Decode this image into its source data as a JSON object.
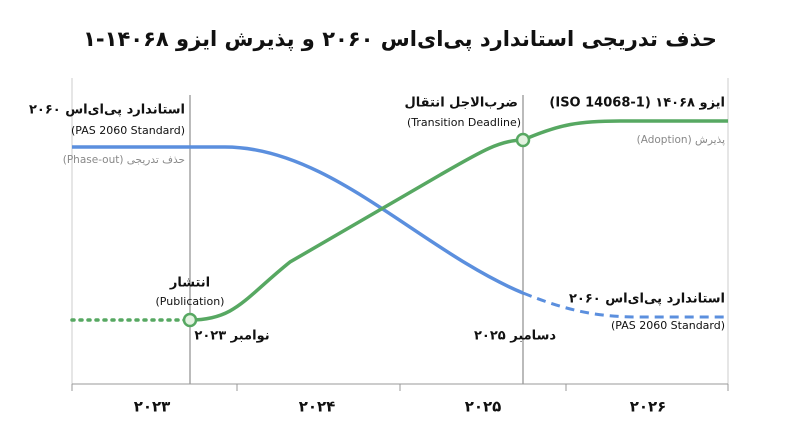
{
  "title": "حذف تدریجی استاندارد پی‌ای‌اس ۲۰۶۰ و پذیرش ایزو ۱۴۰۶۸-۱",
  "phase_out": {
    "name": "استاندارد پی‌ای‌اس ۲۰۶۰",
    "name_en": "(PAS 2060 Standard)",
    "label": "حذف تدریجی (Phase-out)"
  },
  "adoption": {
    "name": "ایزو ۱۴۰۶۸ (ISO 14068-1)",
    "label": "پذیرش (Adoption)"
  },
  "deadline": {
    "name": "ضرب‌الاجل انتقال",
    "name_en": "(Transition Deadline)",
    "date": "دسامبر ۲۰۲۵"
  },
  "publication": {
    "name": "انتشار",
    "name_en": "(Publication)",
    "date": "نوامبر ۲۰۲۳"
  },
  "end_label": {
    "name": "استاندارد پی‌ای‌اس ۲۰۶۰",
    "name_en": "(PAS 2060 Standard)"
  },
  "years": [
    "۲۰۲۳",
    "۲۰۲۴",
    "۲۰۲۵",
    "۲۰۲۶"
  ]
}
